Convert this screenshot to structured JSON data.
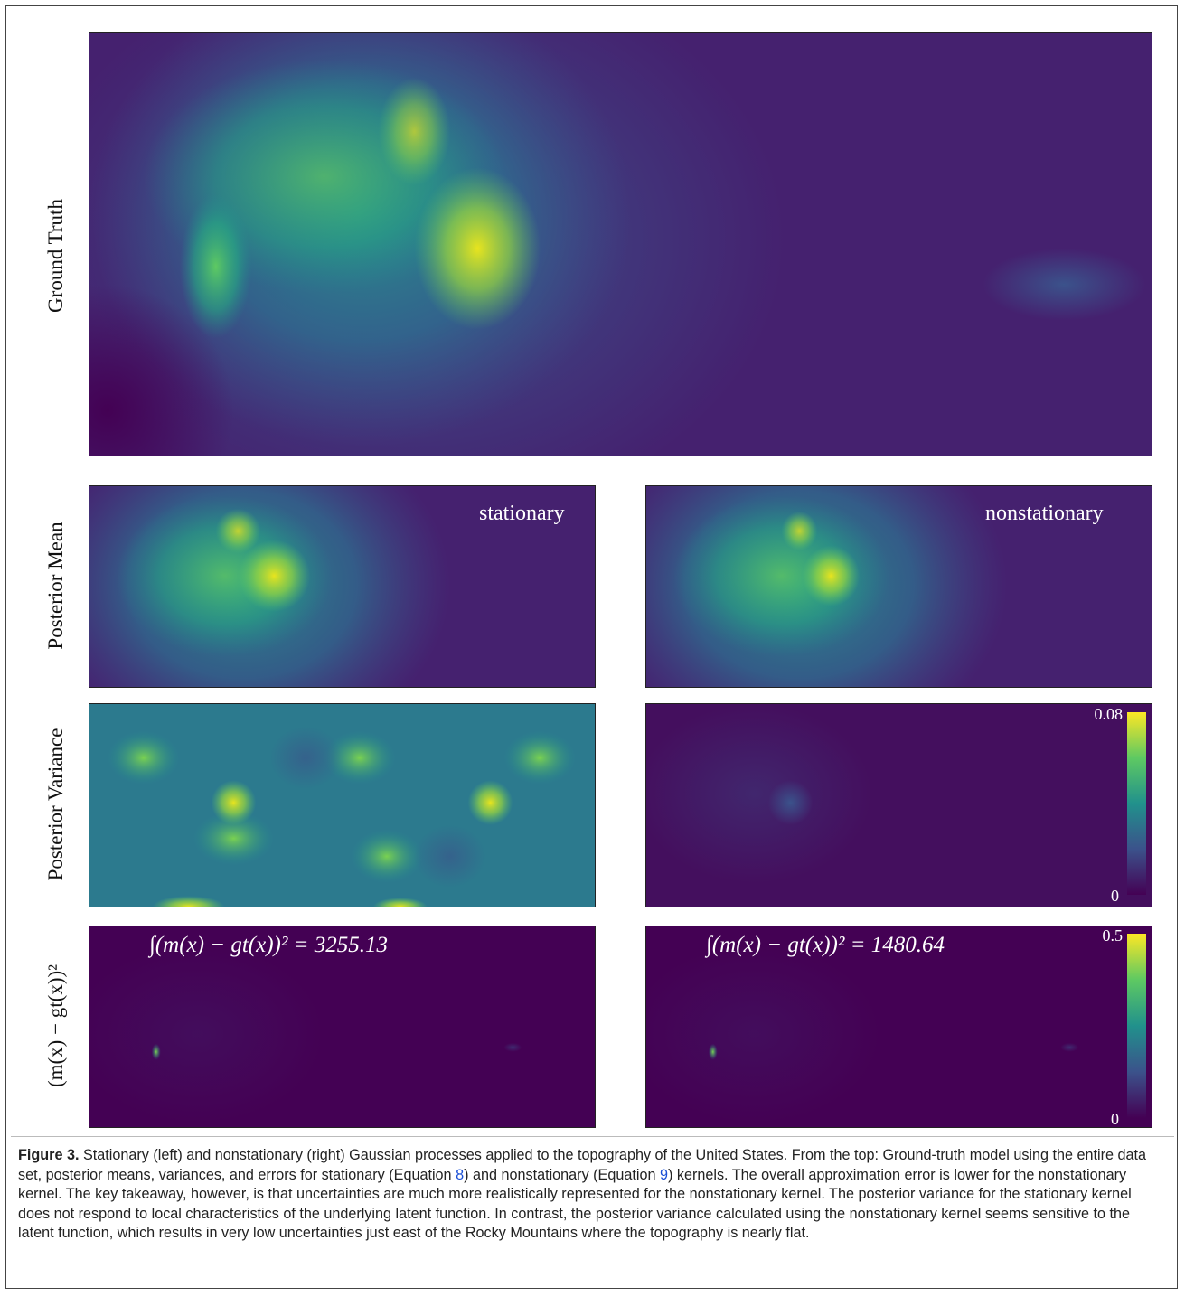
{
  "figure": {
    "row_labels": [
      "Ground Truth",
      "Posterior Mean",
      "Posterior Variance",
      "(m(x) − gt(x))²"
    ],
    "panel_labels": [
      "stationary",
      "nonstationary"
    ],
    "error_equations": [
      "∫(m(x) − gt(x))² = 3255.13",
      "∫(m(x) − gt(x))² = 1480.64"
    ],
    "colorbars": [
      {
        "max": 0.08,
        "min": 0
      },
      {
        "max": 0.5,
        "min": 0
      }
    ]
  },
  "caption": {
    "label": "Figure 3.",
    "text_1": " Stationary (left) and nonstationary (right) Gaussian processes applied to the topography of the United States. From the top: Ground-truth model using the entire data set, posterior means, variances, and errors for stationary (Equation ",
    "ref_1": "8",
    "text_2": ") and nonstationary (Equation ",
    "ref_2": "9",
    "text_3": ") kernels. The overall approximation error is lower for the nonstationary kernel. The key takeaway, however, is that uncertainties are much more realistically represented for the nonstationary kernel. The posterior variance for the stationary kernel does not respond to local characteristics of the underlying latent function. In contrast, the posterior variance calculated using the nonstationary kernel seems sensitive to the latent function, which results in very low uncertainties just east of the Rocky Mountains where the topography is nearly flat."
  }
}
